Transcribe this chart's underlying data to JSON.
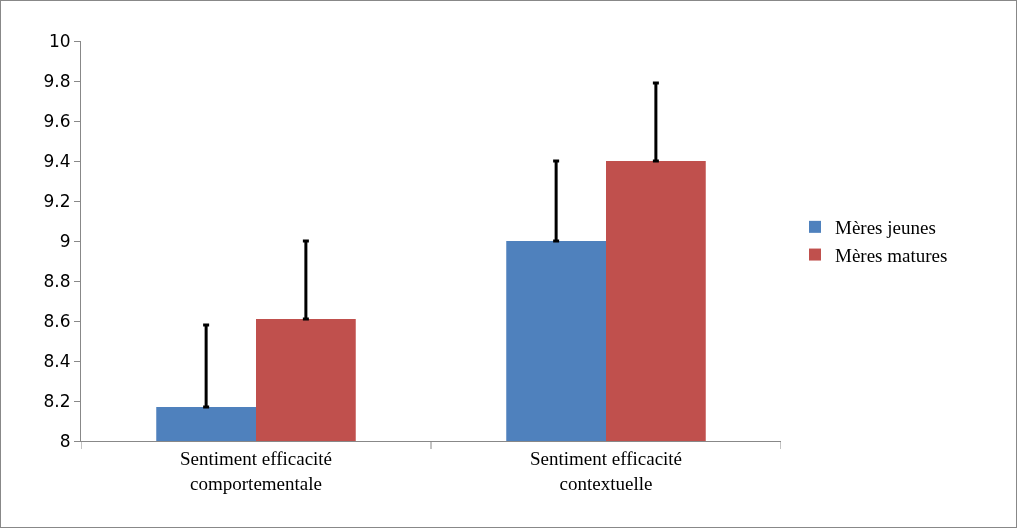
{
  "chart_data": {
    "type": "bar",
    "categories": [
      "Sentiment efficacité\ncomportementale",
      "Sentiment efficacité\ncontextuelle"
    ],
    "series": [
      {
        "name": "Mères jeunes",
        "color": "#4f81bd",
        "values": [
          8.17,
          9.0
        ],
        "errors": [
          [
            8.17,
            8.58
          ],
          [
            9.0,
            9.4
          ]
        ]
      },
      {
        "name": "Mères matures",
        "color": "#c0504d",
        "values": [
          8.61,
          9.4
        ],
        "errors": [
          [
            8.61,
            9.0
          ],
          [
            9.4,
            9.79
          ]
        ]
      }
    ],
    "ylim": [
      8,
      10
    ],
    "yticks": [
      8,
      8.2,
      8.4,
      8.6,
      8.8,
      9,
      9.2,
      9.4,
      9.6,
      9.8,
      10
    ],
    "grid": false,
    "legend": "right"
  }
}
